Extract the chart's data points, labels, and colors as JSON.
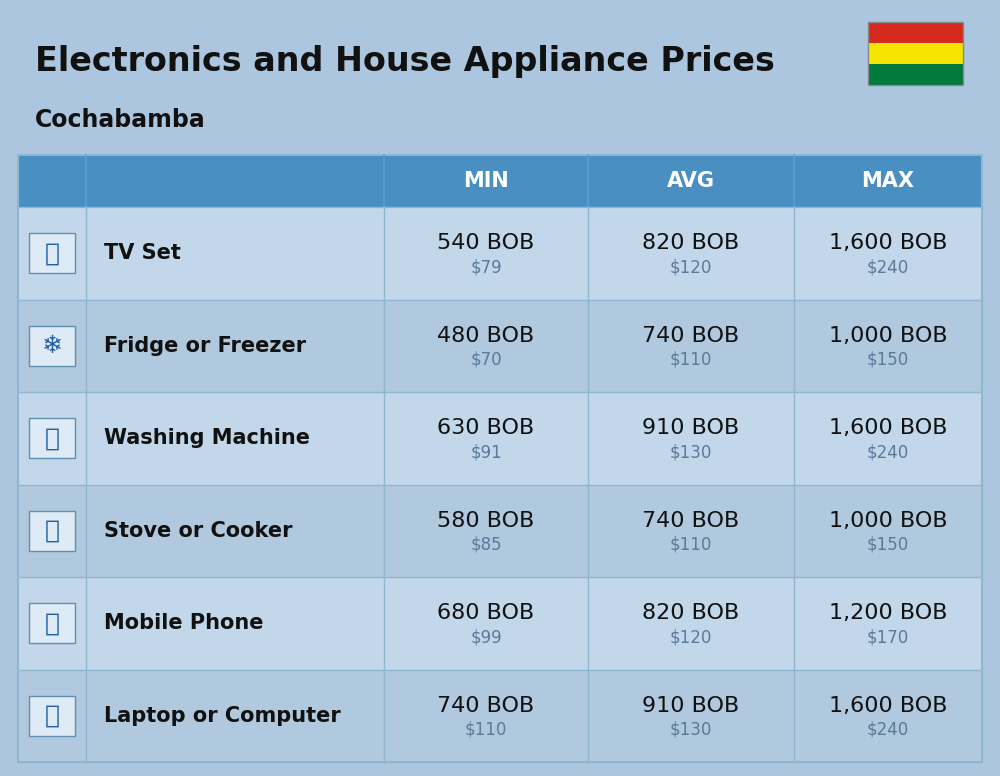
{
  "title": "Electronics and House Appliance Prices",
  "subtitle": "Cochabamba",
  "bg_color": "#adc6df",
  "header_bg": "#4a8fc2",
  "header_text_color": "#ffffff",
  "row_bg_even": "#c2d7ea",
  "row_bg_odd": "#b0c9de",
  "divider_color": "#90b5cf",
  "items": [
    {
      "name": "TV Set",
      "min_bob": "540 BOB",
      "min_usd": "$79",
      "avg_bob": "820 BOB",
      "avg_usd": "$120",
      "max_bob": "1,600 BOB",
      "max_usd": "$240"
    },
    {
      "name": "Fridge or Freezer",
      "min_bob": "480 BOB",
      "min_usd": "$70",
      "avg_bob": "740 BOB",
      "avg_usd": "$110",
      "max_bob": "1,000 BOB",
      "max_usd": "$150"
    },
    {
      "name": "Washing Machine",
      "min_bob": "630 BOB",
      "min_usd": "$91",
      "avg_bob": "910 BOB",
      "avg_usd": "$130",
      "max_bob": "1,600 BOB",
      "max_usd": "$240"
    },
    {
      "name": "Stove or Cooker",
      "min_bob": "580 BOB",
      "min_usd": "$85",
      "avg_bob": "740 BOB",
      "avg_usd": "$110",
      "max_bob": "1,000 BOB",
      "max_usd": "$150"
    },
    {
      "name": "Mobile Phone",
      "min_bob": "680 BOB",
      "min_usd": "$99",
      "avg_bob": "820 BOB",
      "avg_usd": "$120",
      "max_bob": "1,200 BOB",
      "max_usd": "$170"
    },
    {
      "name": "Laptop or Computer",
      "min_bob": "740 BOB",
      "min_usd": "$110",
      "avg_bob": "910 BOB",
      "avg_usd": "$130",
      "max_bob": "1,600 BOB",
      "max_usd": "$240"
    }
  ],
  "flag_red": "#d52b1e",
  "flag_yellow": "#f4e400",
  "flag_green": "#007a3d",
  "bob_fontsize": 16,
  "usd_fontsize": 12,
  "name_fontsize": 15,
  "title_fontsize": 24,
  "subtitle_fontsize": 17,
  "header_fontsize": 15
}
